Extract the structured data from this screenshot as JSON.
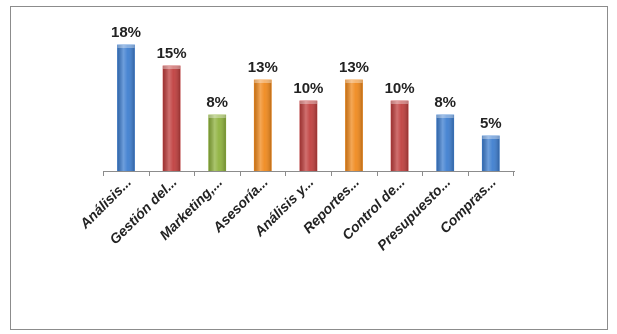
{
  "chart_data": {
    "type": "bar",
    "categories": [
      "Análisis...",
      "Gestión del...",
      "Marketing,...",
      "Asesoría...",
      "Análisis y...",
      "Reportes...",
      "Control de...",
      "Presupuesto...",
      "Compras..."
    ],
    "values": [
      18,
      15,
      8,
      13,
      10,
      13,
      10,
      8,
      5
    ],
    "data_labels": [
      "18%",
      "15%",
      "8%",
      "13%",
      "10%",
      "13%",
      "10%",
      "8%",
      "5%"
    ],
    "colors": [
      "#3f7fd0",
      "#c0403f",
      "#8fb23e",
      "#f08a1e",
      "#c0403f",
      "#f08a1e",
      "#c0403f",
      "#3f7fd0",
      "#3f7fd0"
    ],
    "ylim": [
      0,
      18
    ],
    "grid": false,
    "legend": false
  }
}
